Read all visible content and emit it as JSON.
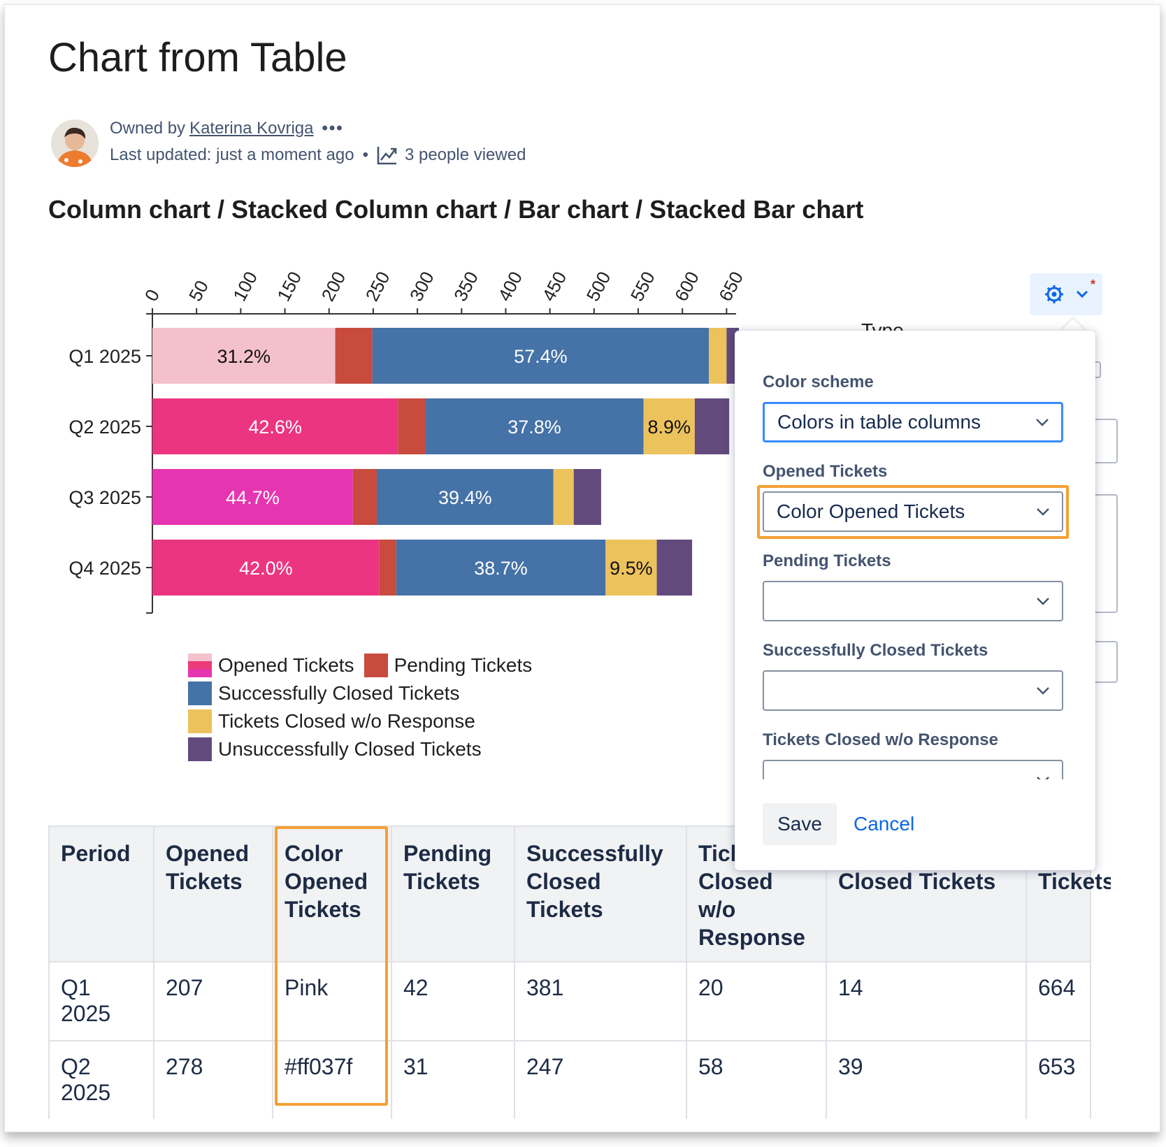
{
  "page": {
    "title": "Chart from Table",
    "owner_prefix": "Owned by",
    "owner_name": "Katerina Kovriga",
    "more_menu": "•••",
    "last_updated": "Last updated: just a moment ago",
    "separator": "•",
    "views": "3 people viewed"
  },
  "section_heading": "Column chart / Stacked Column chart / Bar chart / Stacked Bar chart",
  "settings_panel": {
    "type_label": "Type",
    "color_scheme_label": "Color scheme",
    "color_scheme_value": "Colors in table columns",
    "opened_label": "Opened Tickets",
    "opened_value": "Color Opened Tickets",
    "pending_label": "Pending Tickets",
    "pending_value": "",
    "success_label": "Successfully Closed Tickets",
    "success_value": "",
    "woresp_label": "Tickets Closed w/o Response",
    "woresp_value": "",
    "save_label": "Save",
    "cancel_label": "Cancel"
  },
  "chart_data": {
    "type": "bar",
    "stacked": true,
    "orientation": "horizontal",
    "categories": [
      "Q1 2025",
      "Q2 2025",
      "Q3 2025",
      "Q4 2025"
    ],
    "xlim": [
      0,
      660
    ],
    "x_ticks": [
      0,
      50,
      100,
      150,
      200,
      250,
      300,
      350,
      400,
      450,
      500,
      550,
      600,
      650
    ],
    "series": [
      {
        "name": "Opened Tickets",
        "values": [
          207,
          278,
          227,
          257
        ],
        "colors": [
          "#f4c1cb",
          "#ec3580",
          "#e635b1",
          "#ec3580"
        ],
        "labels": [
          "31.2%",
          "42.6%",
          "44.7%",
          "42.0%"
        ]
      },
      {
        "name": "Pending Tickets",
        "values": [
          42,
          31,
          27,
          19
        ],
        "color": "#c84b3e",
        "labels": [
          "",
          "",
          "",
          ""
        ]
      },
      {
        "name": "Successfully Closed Tickets",
        "values": [
          381,
          247,
          200,
          237
        ],
        "color": "#4572a7",
        "labels": [
          "57.4%",
          "37.8%",
          "39.4%",
          "38.7%"
        ]
      },
      {
        "name": "Tickets Closed w/o Response",
        "values": [
          20,
          58,
          23,
          58
        ],
        "color": "#ecc25c",
        "labels": [
          "",
          "8.9%",
          "",
          "9.5%"
        ]
      },
      {
        "name": "Unsuccessfully Closed Tickets",
        "values": [
          14,
          39,
          31,
          40
        ],
        "color": "#624a7d",
        "labels": [
          "",
          "",
          "",
          ""
        ]
      }
    ],
    "legend": {
      "placement": "bottom-left"
    }
  },
  "table": {
    "headers": [
      "Period",
      "Opened Tickets",
      "Color Opened Tickets",
      "Pending Tickets",
      "Successfully Closed Tickets",
      "Tickets Closed w/o Response",
      "Unsuccessfully Closed Tickets",
      "Total Tickets"
    ],
    "rows": [
      [
        "Q1 2025",
        "207",
        "Pink",
        "42",
        "381",
        "20",
        "14",
        "664"
      ],
      [
        "Q2 2025",
        "278",
        "#ff037f",
        "31",
        "247",
        "58",
        "39",
        "653"
      ]
    ]
  }
}
